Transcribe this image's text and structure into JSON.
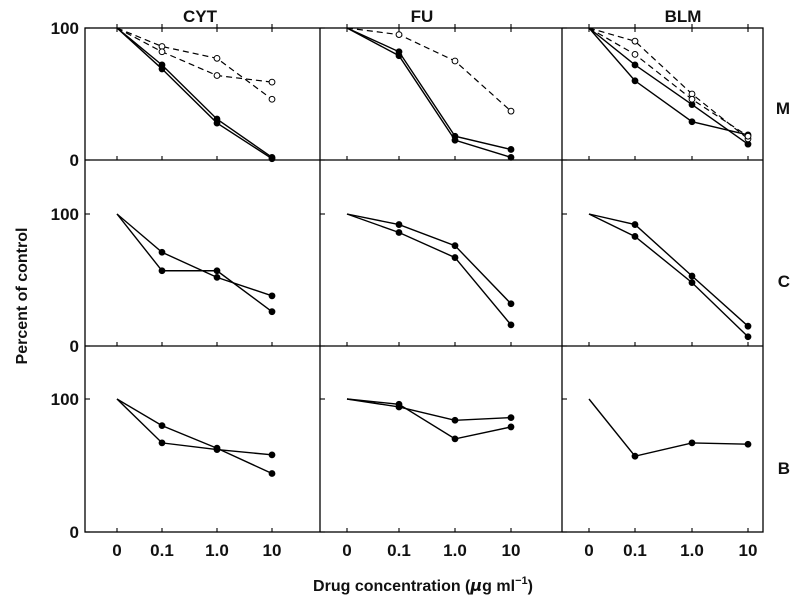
{
  "chart_data": {
    "type": "line",
    "x_tick_labels": [
      "0",
      "0.1",
      "1.0",
      "10"
    ],
    "y_tick_labels": [
      "0",
      "100"
    ],
    "ylim": [
      0,
      100
    ],
    "xlabel_prefix": "Drug concentration (",
    "xlabel_mu": "μ",
    "xlabel_unit": "g ml",
    "xlabel_exp": "−1",
    "xlabel_suffix": ")",
    "ylabel": "Percent of control",
    "columns": [
      "CYT",
      "FU",
      "BLM"
    ],
    "rows": [
      "M",
      "C",
      "B"
    ],
    "panels": [
      {
        "row": "M",
        "col": "CYT",
        "series": [
          {
            "marker": "filled",
            "style": "solid",
            "values": [
              100,
              72,
              31,
              2
            ]
          },
          {
            "marker": "filled",
            "style": "solid",
            "values": [
              100,
              69,
              28,
              1
            ]
          },
          {
            "marker": "open",
            "style": "dashed",
            "values": [
              100,
              86,
              77,
              46
            ]
          },
          {
            "marker": "open",
            "style": "dashed",
            "values": [
              100,
              82,
              64,
              59
            ]
          }
        ]
      },
      {
        "row": "M",
        "col": "FU",
        "series": [
          {
            "marker": "filled",
            "style": "solid",
            "values": [
              100,
              82,
              18,
              8
            ]
          },
          {
            "marker": "filled",
            "style": "solid",
            "values": [
              100,
              79,
              15,
              2
            ]
          },
          {
            "marker": "open",
            "style": "dashed",
            "values": [
              100,
              95,
              75,
              37
            ]
          }
        ]
      },
      {
        "row": "M",
        "col": "BLM",
        "series": [
          {
            "marker": "filled",
            "style": "solid",
            "values": [
              100,
              60,
              29,
              19
            ]
          },
          {
            "marker": "filled",
            "style": "solid",
            "values": [
              100,
              72,
              42,
              12
            ]
          },
          {
            "marker": "open",
            "style": "dashed",
            "values": [
              100,
              90,
              50,
              16
            ]
          },
          {
            "marker": "open",
            "style": "dashed",
            "values": [
              100,
              80,
              46,
              18
            ]
          }
        ]
      },
      {
        "row": "C",
        "col": "CYT",
        "series": [
          {
            "marker": "filled",
            "style": "solid",
            "values": [
              100,
              71,
              52,
              38
            ]
          },
          {
            "marker": "filled",
            "style": "solid",
            "values": [
              100,
              57,
              57,
              26
            ]
          }
        ]
      },
      {
        "row": "C",
        "col": "FU",
        "series": [
          {
            "marker": "filled",
            "style": "solid",
            "values": [
              100,
              92,
              76,
              32
            ]
          },
          {
            "marker": "filled",
            "style": "solid",
            "values": [
              100,
              86,
              67,
              16
            ]
          }
        ]
      },
      {
        "row": "C",
        "col": "BLM",
        "series": [
          {
            "marker": "filled",
            "style": "solid",
            "values": [
              100,
              92,
              53,
              15
            ]
          },
          {
            "marker": "filled",
            "style": "solid",
            "values": [
              100,
              83,
              48,
              7
            ]
          }
        ]
      },
      {
        "row": "B",
        "col": "CYT",
        "series": [
          {
            "marker": "filled",
            "style": "solid",
            "values": [
              100,
              80,
              63,
              44
            ]
          },
          {
            "marker": "filled",
            "style": "solid",
            "values": [
              100,
              67,
              62,
              58
            ]
          }
        ]
      },
      {
        "row": "B",
        "col": "FU",
        "series": [
          {
            "marker": "filled",
            "style": "solid",
            "values": [
              100,
              94,
              84,
              86
            ]
          },
          {
            "marker": "filled",
            "style": "solid",
            "values": [
              100,
              96,
              70,
              79
            ]
          }
        ]
      },
      {
        "row": "B",
        "col": "BLM",
        "series": [
          {
            "marker": "filled",
            "style": "solid",
            "values": [
              100,
              57,
              67,
              66
            ]
          }
        ]
      }
    ]
  }
}
